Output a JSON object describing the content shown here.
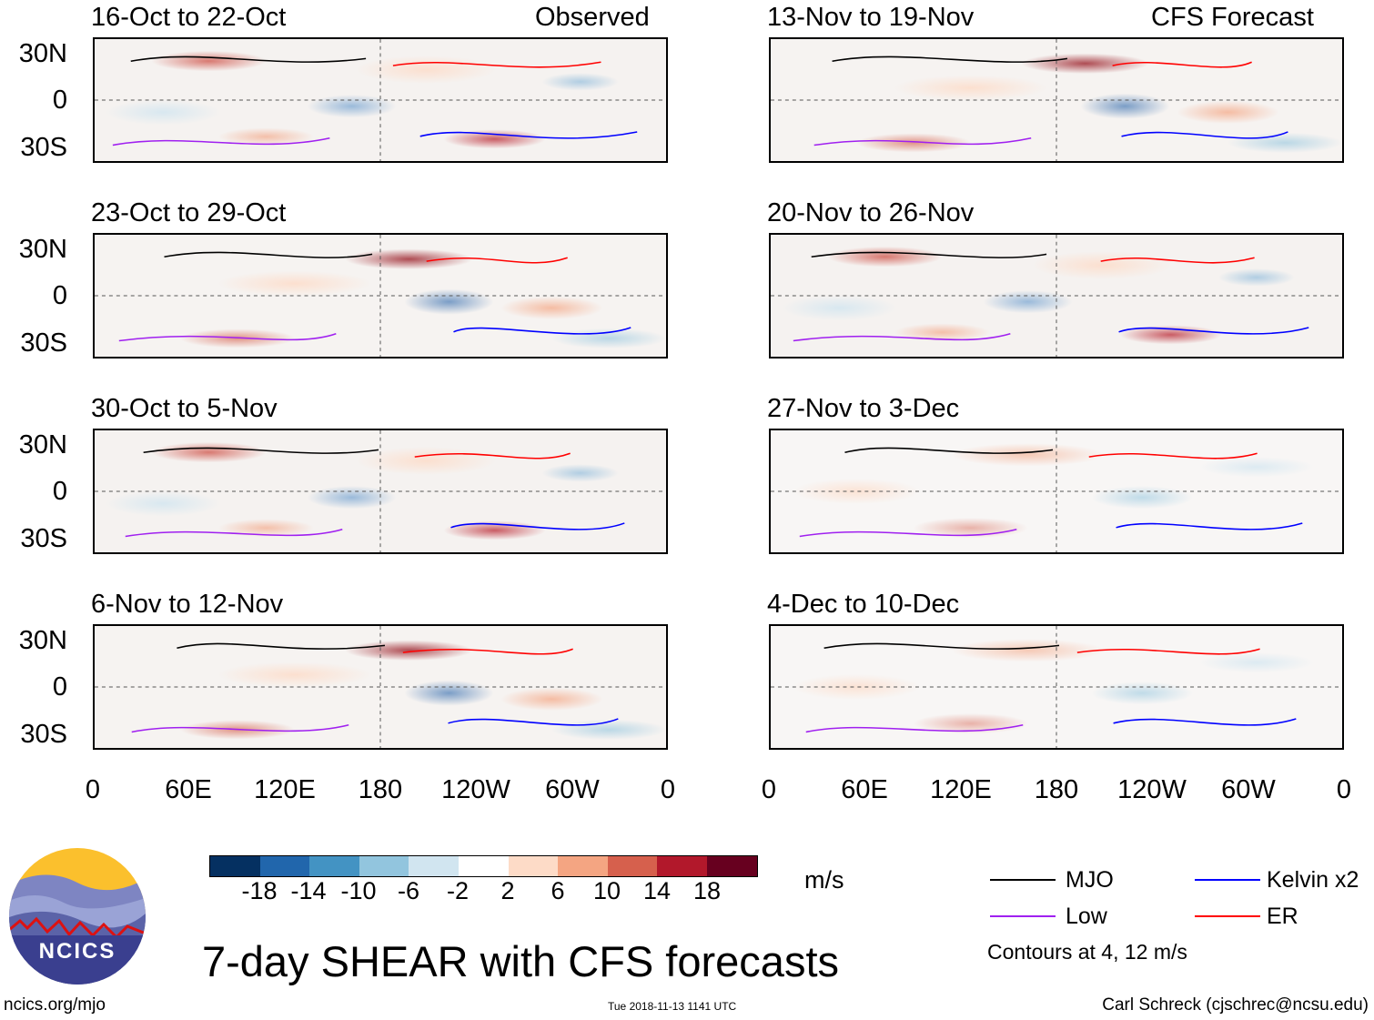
{
  "panels": [
    {
      "title": "16-Oct to 22-Oct",
      "tag": "Observed"
    },
    {
      "title": "23-Oct to 29-Oct",
      "tag": ""
    },
    {
      "title": "30-Oct to 5-Nov",
      "tag": ""
    },
    {
      "title": "6-Nov to 12-Nov",
      "tag": ""
    },
    {
      "title": "13-Nov to 19-Nov",
      "tag": "CFS Forecast"
    },
    {
      "title": "20-Nov to 26-Nov",
      "tag": ""
    },
    {
      "title": "27-Nov to 3-Dec",
      "tag": ""
    },
    {
      "title": "4-Dec to 10-Dec",
      "tag": ""
    }
  ],
  "lat_labels": [
    "30N",
    "0",
    "30S"
  ],
  "lon_labels": [
    "0",
    "60E",
    "120E",
    "180",
    "120W",
    "60W",
    "0"
  ],
  "colorbar": {
    "colors": [
      "#053061",
      "#2166ac",
      "#4393c3",
      "#92c5de",
      "#d1e5f0",
      "#ffffff",
      "#fddbc7",
      "#f4a582",
      "#d6604d",
      "#b2182b",
      "#67001f"
    ],
    "ticks": [
      "-18",
      "-14",
      "-10",
      "-6",
      "-2",
      "2",
      "6",
      "10",
      "14",
      "18"
    ],
    "unit": "m/s"
  },
  "legend": {
    "items": [
      {
        "label": "MJO",
        "color": "#000000"
      },
      {
        "label": "Kelvin x2",
        "color": "#0000ff"
      },
      {
        "label": "Low",
        "color": "#a020f0"
      },
      {
        "label": "ER",
        "color": "#ff0000"
      }
    ],
    "note": "Contours at 4, 12 m/s"
  },
  "title": "7-day SHEAR with CFS forecasts",
  "logo_text": "NCICS",
  "footer": {
    "left": "ncics.org/mjo",
    "mid": "Tue 2018-11-13 1141 UTC",
    "right": "Carl Schreck (cjschrec@ncsu.edu)"
  }
}
